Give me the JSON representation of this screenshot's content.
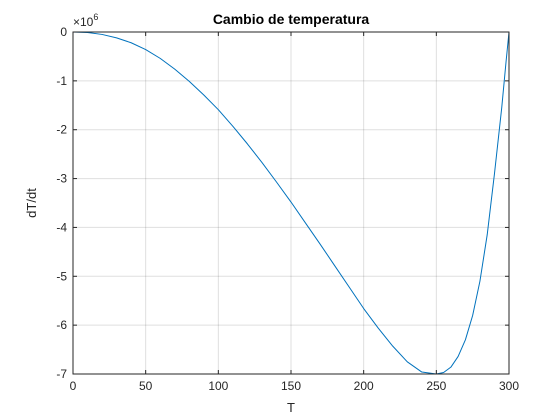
{
  "chart_data": {
    "type": "line",
    "title": "Cambio de temperatura",
    "xlabel": "T",
    "ylabel": "dT/dt",
    "y_exponent_base": "×10",
    "y_exponent_power": "6",
    "xlim": [
      0,
      300
    ],
    "ylim": [
      -7,
      0
    ],
    "x_ticks": [
      0,
      50,
      100,
      150,
      200,
      250,
      300
    ],
    "y_ticks": [
      0,
      -1,
      -2,
      -3,
      -4,
      -5,
      -6,
      -7
    ],
    "grid": true,
    "series": [
      {
        "color": "#0072bd",
        "x": [
          0,
          10,
          20,
          30,
          40,
          50,
          60,
          70,
          80,
          90,
          100,
          110,
          120,
          130,
          140,
          150,
          160,
          170,
          180,
          190,
          200,
          210,
          220,
          230,
          240,
          250,
          255,
          260,
          265,
          270,
          275,
          280,
          285,
          290,
          295,
          298,
          300
        ],
        "y": [
          0,
          -0.01,
          -0.05,
          -0.12,
          -0.22,
          -0.36,
          -0.54,
          -0.76,
          -1.01,
          -1.29,
          -1.59,
          -1.93,
          -2.29,
          -2.67,
          -3.07,
          -3.48,
          -3.91,
          -4.34,
          -4.78,
          -5.22,
          -5.66,
          -6.06,
          -6.43,
          -6.75,
          -6.96,
          -7.0,
          -6.97,
          -6.86,
          -6.64,
          -6.3,
          -5.8,
          -5.1,
          -4.15,
          -2.9,
          -1.55,
          -0.6,
          0
        ]
      }
    ]
  }
}
